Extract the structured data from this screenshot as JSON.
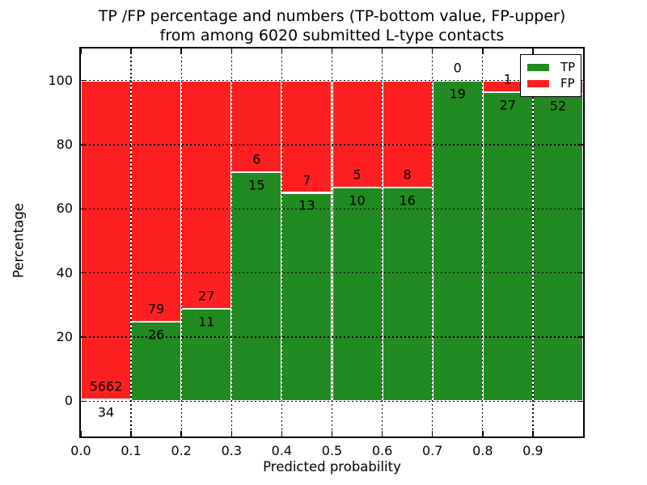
{
  "title": {
    "line1": "TP /FP percentage and numbers (TP-bottom value, FP-upper)",
    "line2": "from among 6020 submitted L-type contacts"
  },
  "axes": {
    "xlabel": "Predicted probability",
    "ylabel": "Percentage",
    "x_tick_labels": [
      "0.0",
      "0.1",
      "0.2",
      "0.3",
      "0.4",
      "0.5",
      "0.6",
      "0.7",
      "0.8",
      "0.9"
    ],
    "y_tick_labels": [
      "0",
      "20",
      "40",
      "60",
      "80",
      "100"
    ],
    "y_tick_values": [
      0,
      20,
      40,
      60,
      80,
      100
    ]
  },
  "legend": {
    "items": [
      {
        "label": "TP",
        "color": "#218a21"
      },
      {
        "label": "FP",
        "color": "#fe2020"
      }
    ]
  },
  "chart_data": {
    "type": "bar",
    "stacked": true,
    "units": "percent",
    "title": "TP /FP percentage and numbers (TP-bottom value, FP-upper) from among 6020 submitted L-type contacts",
    "xlabel": "Predicted probability",
    "ylabel": "Percentage",
    "xlim": [
      0.0,
      1.0
    ],
    "ylim": [
      -11,
      110
    ],
    "grid": true,
    "grid_style": "dotted",
    "legend_position": "upper right",
    "bin_edges": [
      0.0,
      0.1,
      0.2,
      0.3,
      0.4,
      0.5,
      0.6,
      0.7,
      0.8,
      0.9,
      1.0
    ],
    "bin_centers": [
      0.05,
      0.15,
      0.25,
      0.35,
      0.45,
      0.55,
      0.65,
      0.75,
      0.85,
      0.95
    ],
    "series": [
      {
        "name": "TP",
        "stack_position": "bottom",
        "color": "#218a21",
        "counts": [
          34,
          26,
          11,
          15,
          13,
          10,
          16,
          19,
          27,
          52
        ],
        "percent": [
          0.6,
          24.8,
          28.9,
          71.4,
          65.0,
          66.7,
          66.7,
          100.0,
          96.4,
          96.0
        ],
        "labels": [
          "34",
          "26",
          "11",
          "15",
          "13",
          "10",
          "16",
          "19",
          "27",
          "52"
        ]
      },
      {
        "name": "FP",
        "stack_position": "top",
        "color": "#fe2020",
        "counts": [
          5662,
          79,
          27,
          6,
          7,
          5,
          8,
          0,
          1,
          null
        ],
        "percent": [
          99.4,
          75.2,
          71.1,
          28.6,
          35.0,
          33.3,
          33.3,
          0.0,
          3.6,
          4.0
        ],
        "labels": [
          "5662",
          "79",
          "27",
          "6",
          "7",
          "5",
          "8",
          "0",
          "1",
          ""
        ]
      }
    ],
    "label_offset_percent": 4
  }
}
